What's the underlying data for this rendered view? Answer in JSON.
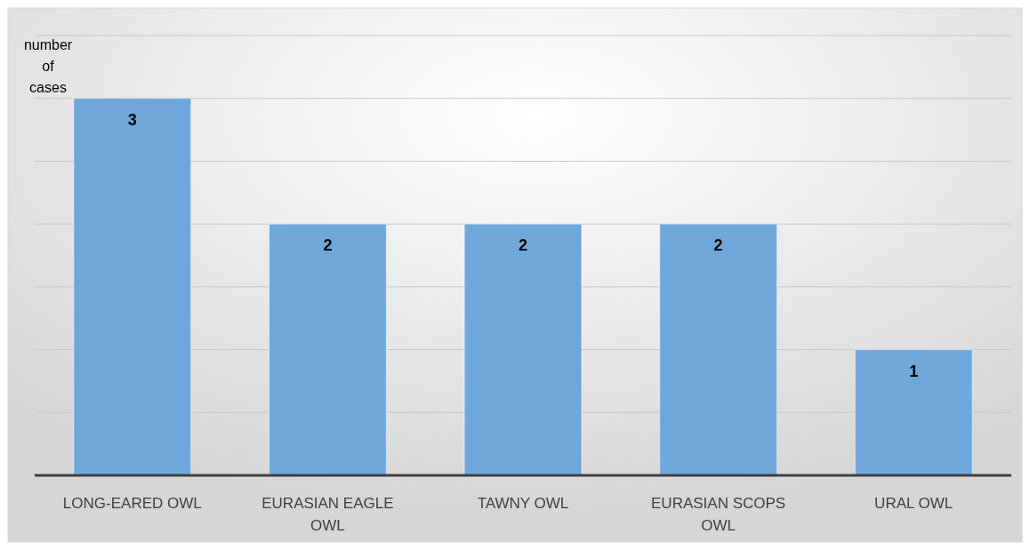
{
  "chart_data": {
    "type": "bar",
    "ylabel": "number of cases",
    "categories": [
      "LONG-EARED OWL",
      "EURASIAN EAGLE OWL",
      "TAWNY OWL",
      "EURASIAN SCOPS OWL",
      "URAL OWL"
    ],
    "values": [
      3,
      2,
      2,
      2,
      1
    ],
    "color": "#6fa7db",
    "ylim": [
      0,
      3.5
    ],
    "yticks": [
      {
        "value": 0,
        "label": null
      },
      {
        "value": 0.5,
        "label": null
      },
      {
        "value": 1,
        "label": null
      },
      {
        "value": 1.5,
        "label": null
      },
      {
        "value": 2,
        "label": null
      },
      {
        "value": 2.5,
        "label": null
      },
      {
        "value": 3,
        "label": null
      },
      {
        "value": 3.5,
        "label": null
      }
    ],
    "grid": "y",
    "data_labels": true,
    "tick_labels": "x"
  }
}
